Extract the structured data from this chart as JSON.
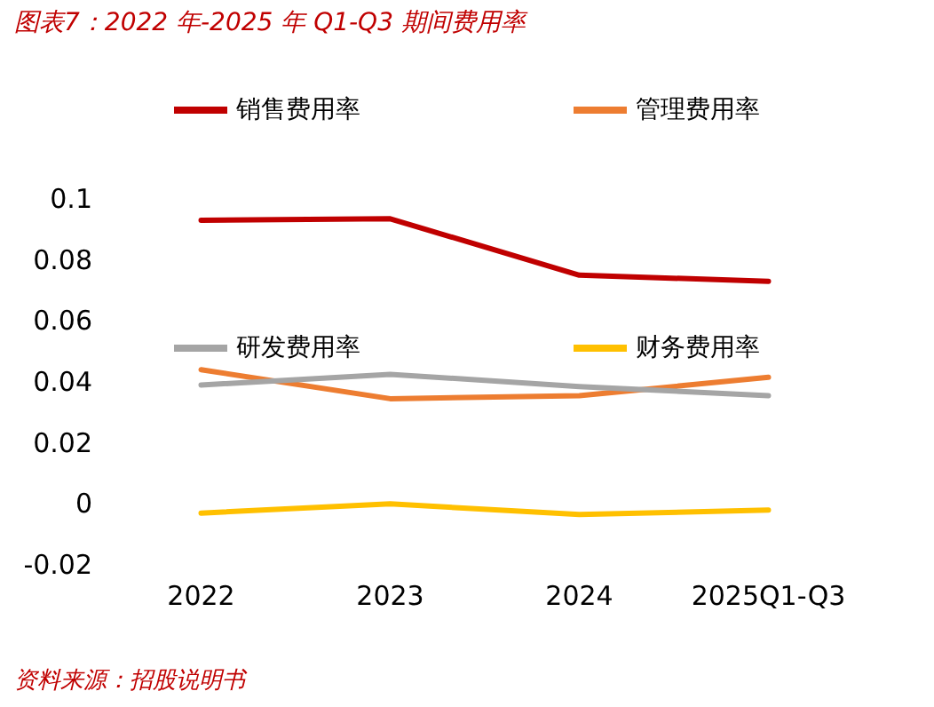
{
  "chart_data": {
    "type": "line",
    "title": "图表7：2022 年-2025 年 Q1-Q3 期间费用率",
    "categories": [
      "2022",
      "2023",
      "2024",
      "2025Q1-Q3"
    ],
    "series": [
      {
        "name": "销售费用率",
        "color": "#c00000",
        "values": [
          0.093,
          0.0935,
          0.075,
          0.073
        ]
      },
      {
        "name": "管理费用率",
        "color": "#ed7d31",
        "values": [
          0.044,
          0.0345,
          0.0355,
          0.0415
        ]
      },
      {
        "name": "研发费用率",
        "color": "#a5a5a5",
        "values": [
          0.039,
          0.0425,
          0.0385,
          0.0355
        ]
      },
      {
        "name": "财务费用率",
        "color": "#ffc000",
        "values": [
          -0.003,
          0,
          -0.0035,
          -0.002
        ]
      }
    ],
    "ylim": [
      -0.02,
      0.1
    ],
    "yticks": [
      -0.02,
      0,
      0.02,
      0.04,
      0.06,
      0.08,
      0.1
    ],
    "grid": false,
    "legend": "top",
    "marker": "none",
    "line_style": "solid",
    "annotations": [
      "资料来源：招股说明书"
    ]
  }
}
